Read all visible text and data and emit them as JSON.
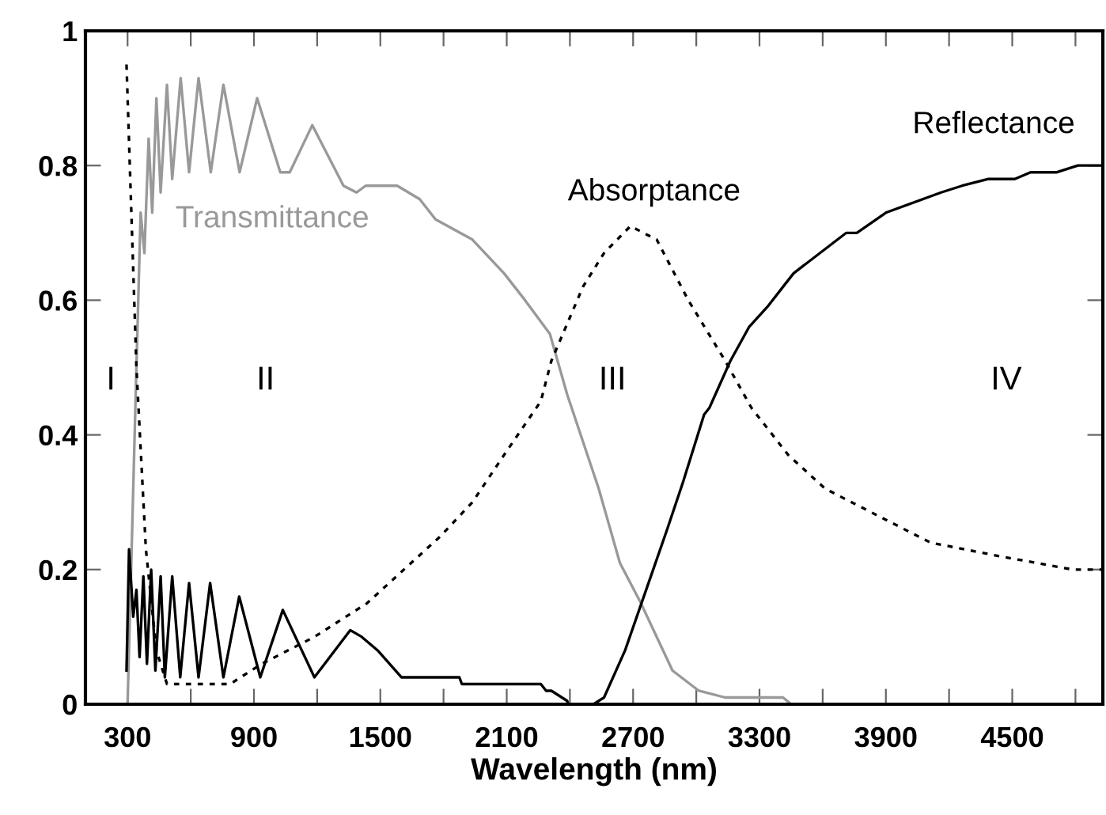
{
  "chart_data": {
    "type": "line",
    "xlabel": "Wavelength (nm)",
    "xlim": [
      100,
      4930
    ],
    "ylim": [
      0,
      1
    ],
    "xticks": [
      300,
      {
        "value": 600,
        "label": null
      },
      900,
      {
        "value": 1200,
        "label": null
      },
      1500,
      {
        "value": 1800,
        "label": null
      },
      2100,
      {
        "value": 2400,
        "label": null
      },
      2700,
      {
        "value": 3000,
        "label": null
      },
      3300,
      {
        "value": 3600,
        "label": null
      },
      3900,
      {
        "value": 4200,
        "label": null
      },
      4500,
      {
        "value": 4800,
        "label": null
      }
    ],
    "yticks": [
      0,
      0.2,
      0.4,
      0.6,
      0.8,
      1
    ],
    "grid": false,
    "legend": false,
    "marker": "none",
    "series": [
      {
        "name": "Transmittance",
        "color": "#999999",
        "line_style": "solid",
        "x": [
          300,
          342,
          362,
          380,
          400,
          417,
          437,
          457,
          487,
          512,
          552,
          592,
          637,
          695,
          755,
          832,
          915,
          1025,
          1070,
          1177,
          1325,
          1387,
          1430,
          1580,
          1687,
          1762,
          1937,
          2087,
          2187,
          2305,
          2387,
          2537,
          2637,
          2737,
          2887,
          3012,
          3137,
          3412,
          3450
        ],
        "values": [
          0,
          0.5,
          0.73,
          0.67,
          0.84,
          0.73,
          0.9,
          0.76,
          0.92,
          0.78,
          0.93,
          0.79,
          0.93,
          0.79,
          0.92,
          0.79,
          0.9,
          0.79,
          0.79,
          0.86,
          0.77,
          0.76,
          0.77,
          0.77,
          0.75,
          0.72,
          0.69,
          0.64,
          0.6,
          0.55,
          0.46,
          0.32,
          0.21,
          0.15,
          0.05,
          0.02,
          0.01,
          0.01,
          0
        ]
      },
      {
        "name": "Absorptance",
        "color": "#000000",
        "line_style": "dotted",
        "x": [
          295,
          342,
          387,
          437,
          487,
          787,
          937,
          1187,
          1437,
          1787,
          1937,
          2087,
          2262,
          2312,
          2462,
          2562,
          2687,
          2812,
          2962,
          3137,
          3262,
          3437,
          3612,
          3862,
          4112,
          4437,
          4787,
          4930
        ],
        "values": [
          0.95,
          0.5,
          0.23,
          0.08,
          0.03,
          0.03,
          0.06,
          0.1,
          0.15,
          0.25,
          0.3,
          0.37,
          0.45,
          0.51,
          0.62,
          0.67,
          0.71,
          0.69,
          0.6,
          0.51,
          0.44,
          0.37,
          0.32,
          0.28,
          0.24,
          0.22,
          0.2,
          0.2
        ]
      },
      {
        "name": "Reflectance",
        "color": "#000000",
        "line_style": "solid",
        "x": [
          295,
          307,
          327,
          342,
          357,
          375,
          392,
          412,
          432,
          457,
          477,
          512,
          550,
          592,
          637,
          692,
          755,
          830,
          930,
          1037,
          1187,
          1357,
          1412,
          1487,
          1600,
          1875,
          1887,
          2262,
          2287,
          2312,
          2387,
          2392,
          2512,
          2562,
          2662,
          2762,
          2862,
          2937,
          3037,
          3062,
          3162,
          3250,
          3337,
          3412,
          3462,
          3712,
          3762,
          3900,
          4162,
          4262,
          4387,
          4512,
          4587,
          4712,
          4812,
          4930
        ],
        "values": [
          0.05,
          0.23,
          0.13,
          0.17,
          0.07,
          0.19,
          0.06,
          0.2,
          0.05,
          0.19,
          0.04,
          0.19,
          0.04,
          0.18,
          0.04,
          0.18,
          0.04,
          0.16,
          0.04,
          0.14,
          0.04,
          0.11,
          0.1,
          0.08,
          0.04,
          0.04,
          0.03,
          0.03,
          0.02,
          0.02,
          0.005,
          0,
          0,
          0.01,
          0.08,
          0.17,
          0.26,
          0.33,
          0.43,
          0.44,
          0.51,
          0.56,
          0.59,
          0.62,
          0.64,
          0.7,
          0.7,
          0.73,
          0.76,
          0.77,
          0.78,
          0.78,
          0.79,
          0.79,
          0.8,
          0.8
        ]
      }
    ],
    "annotations": [
      "I",
      "II",
      "III",
      "IV"
    ]
  }
}
